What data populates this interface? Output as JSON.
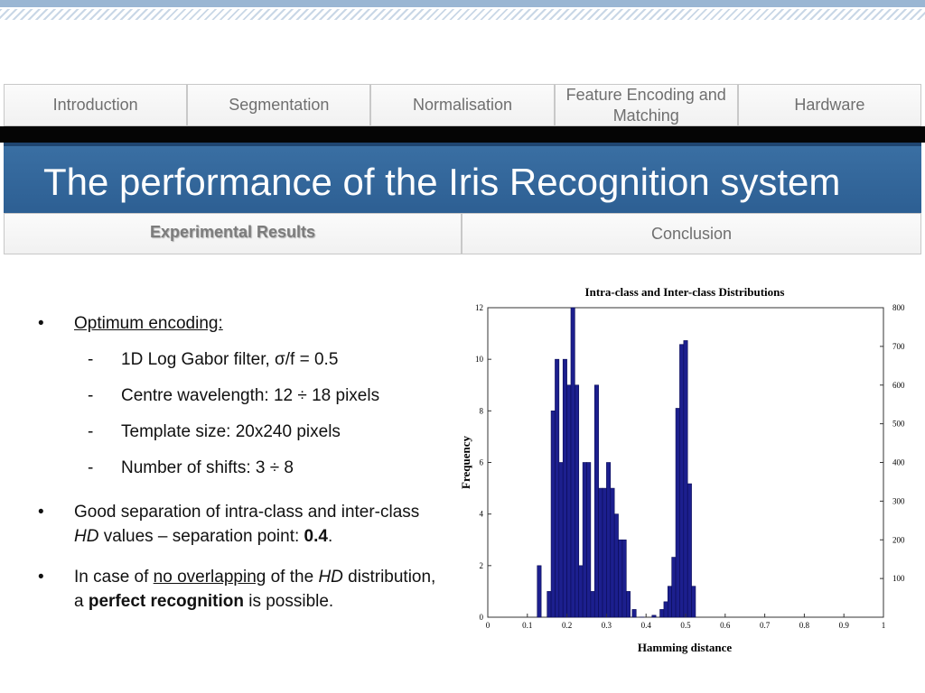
{
  "nav": {
    "tabs": [
      {
        "name": "tab-introduction",
        "label": "Introduction"
      },
      {
        "name": "tab-segmentation",
        "label": "Segmentation"
      },
      {
        "name": "tab-normalisation",
        "label": "Normalisation"
      },
      {
        "name": "tab-feature-encoding",
        "label": "Feature Encoding and Matching"
      },
      {
        "name": "tab-hardware",
        "label": "Hardware"
      }
    ]
  },
  "title": "The performance of the Iris Recognition system",
  "subnav": {
    "active": "Experimental Results",
    "other": "Conclusion"
  },
  "content": {
    "b1": "Optimum encoding:",
    "subs": [
      "1D Log Gabor filter, σ/f = 0.5",
      "Centre wavelength: 12 ÷ 18 pixels",
      "Template size: 20x240 pixels",
      "Number of shifts: 3 ÷ 8"
    ],
    "b2": {
      "pre": "Good separation of intra-class and inter-class ",
      "hd": "HD",
      "mid": " values – separation point: ",
      "value": "0.4",
      "end": "."
    },
    "b3": {
      "pre": "In case of ",
      "u": "no overlapping",
      "mid": " of the ",
      "hd": "HD",
      "mid2": " distribution, a ",
      "bold": "perfect recognition",
      "end": " is possible."
    }
  },
  "chart_data": {
    "type": "bar",
    "title": "Intra-class and Inter-class Distributions",
    "xlabel": "Hamming distance",
    "ylabel": "Frequency",
    "xlim": [
      0,
      1
    ],
    "ylim": [
      0,
      12
    ],
    "y2lim": [
      0,
      800
    ],
    "xticks": [
      "0",
      "0.1",
      "0.2",
      "0.3",
      "0.4",
      "0.5",
      "0.6",
      "0.7",
      "0.8",
      "0.9",
      "1"
    ],
    "yticks": [
      "0",
      "2",
      "4",
      "6",
      "8",
      "10",
      "12"
    ],
    "y2ticks": [
      "100",
      "200",
      "300",
      "400",
      "500",
      "600",
      "700",
      "800"
    ],
    "bar_color": "#1c1f8e",
    "series": [
      {
        "x": [
          0.13,
          0.155,
          0.165,
          0.175,
          0.185,
          0.195,
          0.205,
          0.215,
          0.225,
          0.235,
          0.245,
          0.255,
          0.265,
          0.275,
          0.285,
          0.295,
          0.305,
          0.315,
          0.325,
          0.335,
          0.345,
          0.355,
          0.37
        ],
        "values": [
          2,
          1,
          8,
          10,
          6,
          10,
          9,
          12,
          9,
          2,
          6,
          6,
          1,
          9,
          5,
          5,
          6,
          5,
          4,
          3,
          3,
          1,
          0.3
        ]
      },
      {
        "x": [
          0.39,
          0.42,
          0.44,
          0.45,
          0.46,
          0.47,
          0.48,
          0.49,
          0.5,
          0.51,
          0.52
        ],
        "values": [
          0.3,
          5,
          20,
          40,
          80,
          155,
          540,
          705,
          715,
          345,
          80
        ]
      }
    ]
  }
}
